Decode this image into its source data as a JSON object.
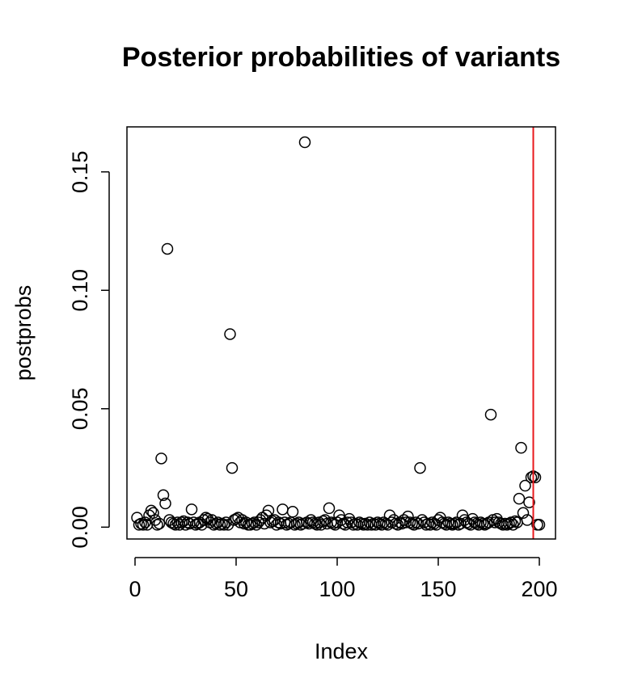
{
  "chart_data": {
    "type": "scatter",
    "title": "Posterior probabilities of variants",
    "xlabel": "Index",
    "ylabel": "postprobs",
    "xlim": [
      -4,
      208
    ],
    "ylim": [
      -0.005,
      0.169
    ],
    "x_ticks": [
      0,
      50,
      100,
      150,
      200
    ],
    "x_tick_labels": [
      "0",
      "50",
      "100",
      "150",
      "200"
    ],
    "y_ticks": [
      0.0,
      0.05,
      0.1,
      0.15
    ],
    "y_tick_labels": [
      "0.00",
      "0.05",
      "0.10",
      "0.15"
    ],
    "grid": false,
    "legend": "none",
    "vline": {
      "x": 197,
      "color": "#e8181c"
    },
    "point_color": "#000000",
    "series": [
      {
        "values": [
          [
            1,
            0.004
          ],
          [
            2,
            0.001
          ],
          [
            3,
            0.0015
          ],
          [
            4,
            0.001
          ],
          [
            5,
            0.002
          ],
          [
            6,
            0.001
          ],
          [
            7,
            0.005
          ],
          [
            8,
            0.007
          ],
          [
            9,
            0.006
          ],
          [
            10,
            0.003
          ],
          [
            11,
            0.001
          ],
          [
            12,
            0.0015
          ],
          [
            13,
            0.029
          ],
          [
            14,
            0.0135
          ],
          [
            15,
            0.01
          ],
          [
            16,
            0.1175
          ],
          [
            17,
            0.003
          ],
          [
            18,
            0.002
          ],
          [
            19,
            0.0015
          ],
          [
            20,
            0.001
          ],
          [
            21,
            0.002
          ],
          [
            22,
            0.001
          ],
          [
            23,
            0.002
          ],
          [
            24,
            0.0025
          ],
          [
            25,
            0.001
          ],
          [
            26,
            0.002
          ],
          [
            27,
            0.0015
          ],
          [
            28,
            0.0075
          ],
          [
            29,
            0.002
          ],
          [
            30,
            0.001
          ],
          [
            31,
            0.0015
          ],
          [
            32,
            0.002
          ],
          [
            33,
            0.001
          ],
          [
            34,
            0.003
          ],
          [
            35,
            0.004
          ],
          [
            36,
            0.0035
          ],
          [
            37,
            0.002
          ],
          [
            38,
            0.003
          ],
          [
            39,
            0.001
          ],
          [
            40,
            0.0015
          ],
          [
            41,
            0.002
          ],
          [
            42,
            0.001
          ],
          [
            43,
            0.0015
          ],
          [
            44,
            0.001
          ],
          [
            45,
            0.002
          ],
          [
            46,
            0.001
          ],
          [
            47,
            0.0815
          ],
          [
            48,
            0.025
          ],
          [
            49,
            0.003
          ],
          [
            50,
            0.0035
          ],
          [
            51,
            0.004
          ],
          [
            52,
            0.002
          ],
          [
            53,
            0.003
          ],
          [
            54,
            0.0015
          ],
          [
            55,
            0.002
          ],
          [
            56,
            0.001
          ],
          [
            57,
            0.001
          ],
          [
            58,
            0.0015
          ],
          [
            59,
            0.002
          ],
          [
            60,
            0.001
          ],
          [
            61,
            0.002
          ],
          [
            62,
            0.003
          ],
          [
            63,
            0.004
          ],
          [
            64,
            0.0015
          ],
          [
            65,
            0.005
          ],
          [
            66,
            0.007
          ],
          [
            67,
            0.002
          ],
          [
            68,
            0.0025
          ],
          [
            69,
            0.003
          ],
          [
            70,
            0.001
          ],
          [
            71,
            0.002
          ],
          [
            72,
            0.0015
          ],
          [
            73,
            0.0075
          ],
          [
            74,
            0.002
          ],
          [
            75,
            0.001
          ],
          [
            76,
            0.0015
          ],
          [
            77,
            0.002
          ],
          [
            78,
            0.0065
          ],
          [
            79,
            0.001
          ],
          [
            80,
            0.0015
          ],
          [
            81,
            0.002
          ],
          [
            82,
            0.001
          ],
          [
            83,
            0.0015
          ],
          [
            84,
            0.1625
          ],
          [
            85,
            0.002
          ],
          [
            86,
            0.0015
          ],
          [
            87,
            0.003
          ],
          [
            88,
            0.002
          ],
          [
            89,
            0.0015
          ],
          [
            90,
            0.001
          ],
          [
            91,
            0.002
          ],
          [
            92,
            0.001
          ],
          [
            93,
            0.0025
          ],
          [
            94,
            0.003
          ],
          [
            95,
            0.0015
          ],
          [
            96,
            0.008
          ],
          [
            97,
            0.002
          ],
          [
            98,
            0.0015
          ],
          [
            99,
            0.001
          ],
          [
            100,
            0.002
          ],
          [
            101,
            0.005
          ],
          [
            102,
            0.003
          ],
          [
            103,
            0.0015
          ],
          [
            104,
            0.001
          ],
          [
            105,
            0.002
          ],
          [
            106,
            0.0035
          ],
          [
            107,
            0.002
          ],
          [
            108,
            0.001
          ],
          [
            109,
            0.0015
          ],
          [
            110,
            0.001
          ],
          [
            111,
            0.002
          ],
          [
            112,
            0.0015
          ],
          [
            113,
            0.001
          ],
          [
            114,
            0.0015
          ],
          [
            115,
            0.001
          ],
          [
            116,
            0.002
          ],
          [
            117,
            0.001
          ],
          [
            118,
            0.0015
          ],
          [
            119,
            0.001
          ],
          [
            120,
            0.002
          ],
          [
            121,
            0.0015
          ],
          [
            122,
            0.001
          ],
          [
            123,
            0.002
          ],
          [
            124,
            0.0015
          ],
          [
            125,
            0.001
          ],
          [
            126,
            0.005
          ],
          [
            127,
            0.002
          ],
          [
            128,
            0.003
          ],
          [
            129,
            0.0015
          ],
          [
            130,
            0.001
          ],
          [
            131,
            0.002
          ],
          [
            132,
            0.0015
          ],
          [
            133,
            0.003
          ],
          [
            134,
            0.002
          ],
          [
            135,
            0.0045
          ],
          [
            136,
            0.002
          ],
          [
            137,
            0.0015
          ],
          [
            138,
            0.001
          ],
          [
            139,
            0.002
          ],
          [
            140,
            0.0015
          ],
          [
            141,
            0.025
          ],
          [
            142,
            0.003
          ],
          [
            143,
            0.002
          ],
          [
            144,
            0.001
          ],
          [
            145,
            0.0015
          ],
          [
            146,
            0.001
          ],
          [
            147,
            0.002
          ],
          [
            148,
            0.0015
          ],
          [
            149,
            0.001
          ],
          [
            150,
            0.003
          ],
          [
            151,
            0.004
          ],
          [
            152,
            0.002
          ],
          [
            153,
            0.0015
          ],
          [
            154,
            0.001
          ],
          [
            155,
            0.002
          ],
          [
            156,
            0.0015
          ],
          [
            157,
            0.001
          ],
          [
            158,
            0.0015
          ],
          [
            159,
            0.002
          ],
          [
            160,
            0.001
          ],
          [
            161,
            0.0015
          ],
          [
            162,
            0.005
          ],
          [
            163,
            0.003
          ],
          [
            164,
            0.002
          ],
          [
            165,
            0.0015
          ],
          [
            166,
            0.001
          ],
          [
            167,
            0.0035
          ],
          [
            168,
            0.002
          ],
          [
            169,
            0.0015
          ],
          [
            170,
            0.001
          ],
          [
            171,
            0.002
          ],
          [
            172,
            0.0015
          ],
          [
            173,
            0.001
          ],
          [
            174,
            0.0015
          ],
          [
            175,
            0.002
          ],
          [
            176,
            0.0475
          ],
          [
            177,
            0.003
          ],
          [
            178,
            0.002
          ],
          [
            179,
            0.0035
          ],
          [
            180,
            0.002
          ],
          [
            181,
            0.0015
          ],
          [
            182,
            0.001
          ],
          [
            183,
            0.0015
          ],
          [
            184,
            0.001
          ],
          [
            185,
            0.0015
          ],
          [
            186,
            0.002
          ],
          [
            187,
            0.001
          ],
          [
            188,
            0.0025
          ],
          [
            189,
            0.002
          ],
          [
            190,
            0.012
          ],
          [
            191,
            0.0335
          ],
          [
            192,
            0.006
          ],
          [
            193,
            0.0175
          ],
          [
            194,
            0.003
          ],
          [
            195,
            0.0105
          ],
          [
            196,
            0.021
          ],
          [
            197,
            0.0215
          ],
          [
            198,
            0.021
          ],
          [
            199,
            0.001
          ],
          [
            200,
            0.001
          ]
        ]
      }
    ]
  }
}
